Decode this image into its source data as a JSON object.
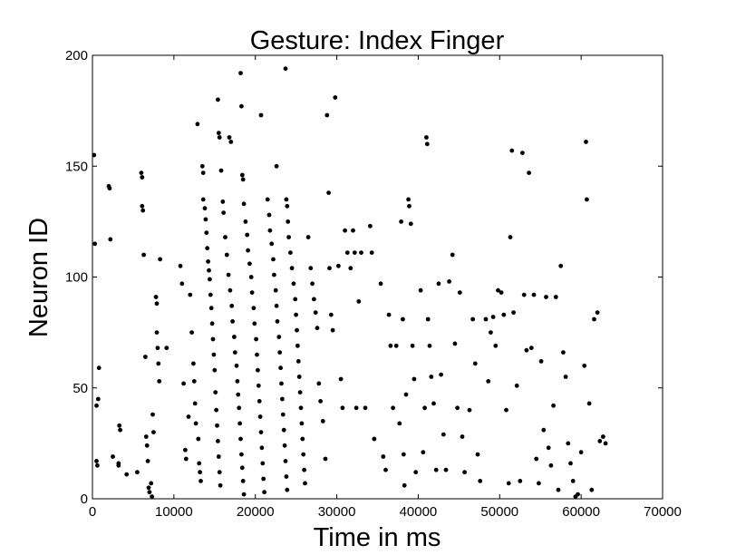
{
  "chart_data": {
    "type": "scatter",
    "title": "Gesture: Index Finger",
    "xlabel": "Time in ms",
    "ylabel": "Neuron ID",
    "xlim": [
      0,
      70000
    ],
    "ylim": [
      0,
      200
    ],
    "xticks": [
      0,
      10000,
      20000,
      30000,
      40000,
      50000,
      60000,
      70000
    ],
    "yticks": [
      0,
      50,
      100,
      150,
      200
    ],
    "xtick_labels": [
      "0",
      "10000",
      "20000",
      "30000",
      "40000",
      "50000",
      "60000",
      "70000"
    ],
    "ytick_labels": [
      "0",
      "50",
      "100",
      "150",
      "200"
    ],
    "grid": false,
    "marker_color": "#000000",
    "points": [
      [
        200,
        155
      ],
      [
        300,
        115
      ],
      [
        500,
        42
      ],
      [
        700,
        45
      ],
      [
        800,
        59
      ],
      [
        500,
        17
      ],
      [
        600,
        15
      ],
      [
        2000,
        141
      ],
      [
        2100,
        140
      ],
      [
        2200,
        117
      ],
      [
        2500,
        19
      ],
      [
        3200,
        16
      ],
      [
        3300,
        33
      ],
      [
        3400,
        31
      ],
      [
        3200,
        15
      ],
      [
        4200,
        11
      ],
      [
        5500,
        12
      ],
      [
        6000,
        147
      ],
      [
        6100,
        145
      ],
      [
        6100,
        132
      ],
      [
        6200,
        130
      ],
      [
        6300,
        110
      ],
      [
        6500,
        64
      ],
      [
        6600,
        28
      ],
      [
        6700,
        24
      ],
      [
        6800,
        17
      ],
      [
        6900,
        5
      ],
      [
        7000,
        3
      ],
      [
        7200,
        7
      ],
      [
        7300,
        1
      ],
      [
        7400,
        38
      ],
      [
        7500,
        30
      ],
      [
        7800,
        91
      ],
      [
        7900,
        88
      ],
      [
        7900,
        75
      ],
      [
        8000,
        68
      ],
      [
        8100,
        61
      ],
      [
        8200,
        53
      ],
      [
        8300,
        108
      ],
      [
        9100,
        68
      ],
      [
        10800,
        105
      ],
      [
        11000,
        97
      ],
      [
        11200,
        52
      ],
      [
        11400,
        22
      ],
      [
        11500,
        18
      ],
      [
        11800,
        37
      ],
      [
        12000,
        92
      ],
      [
        12200,
        75
      ],
      [
        12400,
        61
      ],
      [
        12500,
        53
      ],
      [
        12600,
        43
      ],
      [
        12700,
        34
      ],
      [
        12900,
        169
      ],
      [
        13000,
        27
      ],
      [
        13100,
        16
      ],
      [
        13200,
        12
      ],
      [
        13300,
        8
      ],
      [
        13500,
        150
      ],
      [
        13600,
        147
      ],
      [
        13600,
        135
      ],
      [
        13800,
        131
      ],
      [
        13900,
        126
      ],
      [
        14000,
        120
      ],
      [
        14100,
        113
      ],
      [
        14200,
        107
      ],
      [
        14300,
        103
      ],
      [
        14400,
        99
      ],
      [
        14500,
        92
      ],
      [
        14600,
        86
      ],
      [
        14700,
        79
      ],
      [
        14800,
        72
      ],
      [
        14900,
        65
      ],
      [
        15000,
        58
      ],
      [
        15100,
        48
      ],
      [
        15200,
        40
      ],
      [
        15300,
        33
      ],
      [
        15400,
        26
      ],
      [
        15500,
        19
      ],
      [
        15600,
        12
      ],
      [
        15700,
        6
      ],
      [
        15400,
        180
      ],
      [
        15500,
        165
      ],
      [
        15600,
        163
      ],
      [
        15800,
        148
      ],
      [
        16000,
        134
      ],
      [
        16100,
        129
      ],
      [
        16300,
        118
      ],
      [
        16500,
        110
      ],
      [
        16700,
        101
      ],
      [
        16900,
        94
      ],
      [
        17100,
        87
      ],
      [
        17200,
        80
      ],
      [
        17400,
        73
      ],
      [
        17500,
        66
      ],
      [
        17700,
        60
      ],
      [
        17800,
        53
      ],
      [
        17900,
        47
      ],
      [
        18000,
        41
      ],
      [
        18100,
        34
      ],
      [
        18200,
        27
      ],
      [
        18300,
        20
      ],
      [
        18400,
        14
      ],
      [
        18500,
        8
      ],
      [
        18600,
        2
      ],
      [
        16800,
        163
      ],
      [
        17000,
        161
      ],
      [
        18200,
        192
      ],
      [
        18300,
        177
      ],
      [
        18400,
        146
      ],
      [
        18500,
        144
      ],
      [
        18600,
        133
      ],
      [
        18800,
        125
      ],
      [
        19000,
        119
      ],
      [
        19100,
        112
      ],
      [
        19300,
        106
      ],
      [
        19500,
        100
      ],
      [
        19600,
        93
      ],
      [
        19800,
        86
      ],
      [
        19900,
        79
      ],
      [
        20100,
        72
      ],
      [
        20200,
        65
      ],
      [
        20300,
        58
      ],
      [
        20400,
        51
      ],
      [
        20500,
        44
      ],
      [
        20600,
        37
      ],
      [
        20700,
        30
      ],
      [
        20800,
        23
      ],
      [
        20900,
        16
      ],
      [
        21000,
        9
      ],
      [
        21100,
        3
      ],
      [
        20700,
        173
      ],
      [
        21500,
        135
      ],
      [
        21700,
        128
      ],
      [
        21800,
        121
      ],
      [
        22000,
        115
      ],
      [
        22200,
        108
      ],
      [
        22300,
        101
      ],
      [
        22500,
        94
      ],
      [
        22600,
        87
      ],
      [
        22700,
        80
      ],
      [
        22900,
        73
      ],
      [
        23000,
        66
      ],
      [
        23100,
        59
      ],
      [
        23200,
        52
      ],
      [
        23300,
        45
      ],
      [
        23400,
        38
      ],
      [
        23500,
        31
      ],
      [
        23600,
        24
      ],
      [
        23700,
        17
      ],
      [
        23800,
        10
      ],
      [
        23900,
        4
      ],
      [
        22600,
        150
      ],
      [
        23700,
        194
      ],
      [
        23800,
        135
      ],
      [
        23900,
        132
      ],
      [
        24000,
        125
      ],
      [
        24100,
        118
      ],
      [
        24300,
        111
      ],
      [
        24500,
        104
      ],
      [
        24700,
        97
      ],
      [
        24900,
        90
      ],
      [
        25000,
        83
      ],
      [
        25100,
        76
      ],
      [
        25200,
        69
      ],
      [
        25300,
        62
      ],
      [
        25400,
        55
      ],
      [
        25500,
        48
      ],
      [
        25600,
        41
      ],
      [
        25700,
        34
      ],
      [
        25800,
        27
      ],
      [
        25900,
        20
      ],
      [
        26000,
        13
      ],
      [
        26100,
        7
      ],
      [
        26500,
        118
      ],
      [
        26800,
        104
      ],
      [
        27000,
        97
      ],
      [
        27200,
        90
      ],
      [
        27400,
        84
      ],
      [
        27600,
        77
      ],
      [
        27800,
        52
      ],
      [
        28000,
        44
      ],
      [
        28300,
        35
      ],
      [
        28600,
        18
      ],
      [
        28800,
        173
      ],
      [
        29000,
        138
      ],
      [
        29100,
        104
      ],
      [
        29300,
        83
      ],
      [
        29500,
        76
      ],
      [
        29800,
        181
      ],
      [
        30200,
        105
      ],
      [
        30500,
        54
      ],
      [
        30700,
        41
      ],
      [
        31000,
        121
      ],
      [
        31300,
        111
      ],
      [
        31700,
        104
      ],
      [
        32000,
        121
      ],
      [
        32200,
        111
      ],
      [
        32400,
        41
      ],
      [
        32700,
        89
      ],
      [
        33000,
        111
      ],
      [
        33500,
        41
      ],
      [
        34100,
        123
      ],
      [
        34300,
        111
      ],
      [
        34600,
        27
      ],
      [
        35400,
        97
      ],
      [
        35700,
        19
      ],
      [
        36000,
        13
      ],
      [
        36400,
        83
      ],
      [
        36600,
        69
      ],
      [
        36900,
        41
      ],
      [
        37300,
        69
      ],
      [
        37700,
        34
      ],
      [
        37900,
        125
      ],
      [
        38100,
        81
      ],
      [
        38200,
        20
      ],
      [
        38300,
        6
      ],
      [
        38500,
        47
      ],
      [
        38800,
        135
      ],
      [
        38900,
        132
      ],
      [
        39100,
        124
      ],
      [
        39300,
        69
      ],
      [
        39500,
        54
      ],
      [
        39700,
        12
      ],
      [
        40300,
        94
      ],
      [
        40600,
        21
      ],
      [
        40800,
        41
      ],
      [
        41000,
        163
      ],
      [
        41100,
        160
      ],
      [
        41200,
        81
      ],
      [
        41400,
        69
      ],
      [
        41600,
        55
      ],
      [
        41900,
        43
      ],
      [
        42200,
        13
      ],
      [
        42500,
        97
      ],
      [
        42800,
        56
      ],
      [
        43100,
        29
      ],
      [
        43400,
        13
      ],
      [
        43800,
        98
      ],
      [
        44200,
        110
      ],
      [
        44500,
        70
      ],
      [
        44800,
        41
      ],
      [
        45100,
        93
      ],
      [
        45400,
        28
      ],
      [
        45700,
        12
      ],
      [
        46300,
        40
      ],
      [
        46700,
        81
      ],
      [
        47000,
        61
      ],
      [
        47300,
        20
      ],
      [
        47600,
        8
      ],
      [
        48300,
        81
      ],
      [
        48600,
        53
      ],
      [
        48900,
        75
      ],
      [
        49200,
        82
      ],
      [
        49500,
        69
      ],
      [
        49800,
        94
      ],
      [
        50200,
        93
      ],
      [
        50500,
        83
      ],
      [
        50800,
        40
      ],
      [
        51100,
        7
      ],
      [
        51300,
        118
      ],
      [
        51500,
        157
      ],
      [
        51700,
        84
      ],
      [
        52100,
        51
      ],
      [
        52500,
        8
      ],
      [
        52800,
        156
      ],
      [
        53000,
        92
      ],
      [
        53300,
        67
      ],
      [
        53600,
        147
      ],
      [
        53900,
        68
      ],
      [
        54200,
        92
      ],
      [
        54500,
        18
      ],
      [
        54800,
        7
      ],
      [
        55100,
        62
      ],
      [
        55400,
        31
      ],
      [
        55700,
        91
      ],
      [
        56000,
        23
      ],
      [
        56300,
        15
      ],
      [
        56600,
        42
      ],
      [
        56900,
        91
      ],
      [
        57200,
        4
      ],
      [
        57500,
        105
      ],
      [
        57800,
        66
      ],
      [
        58100,
        55
      ],
      [
        58400,
        25
      ],
      [
        58700,
        16
      ],
      [
        59000,
        8
      ],
      [
        59300,
        1
      ],
      [
        59600,
        2
      ],
      [
        60000,
        21
      ],
      [
        60400,
        60
      ],
      [
        60600,
        161
      ],
      [
        60700,
        135
      ],
      [
        61000,
        43
      ],
      [
        61300,
        4
      ],
      [
        61600,
        81
      ],
      [
        62000,
        84
      ],
      [
        62300,
        26
      ],
      [
        62700,
        28
      ],
      [
        63000,
        25
      ]
    ]
  }
}
